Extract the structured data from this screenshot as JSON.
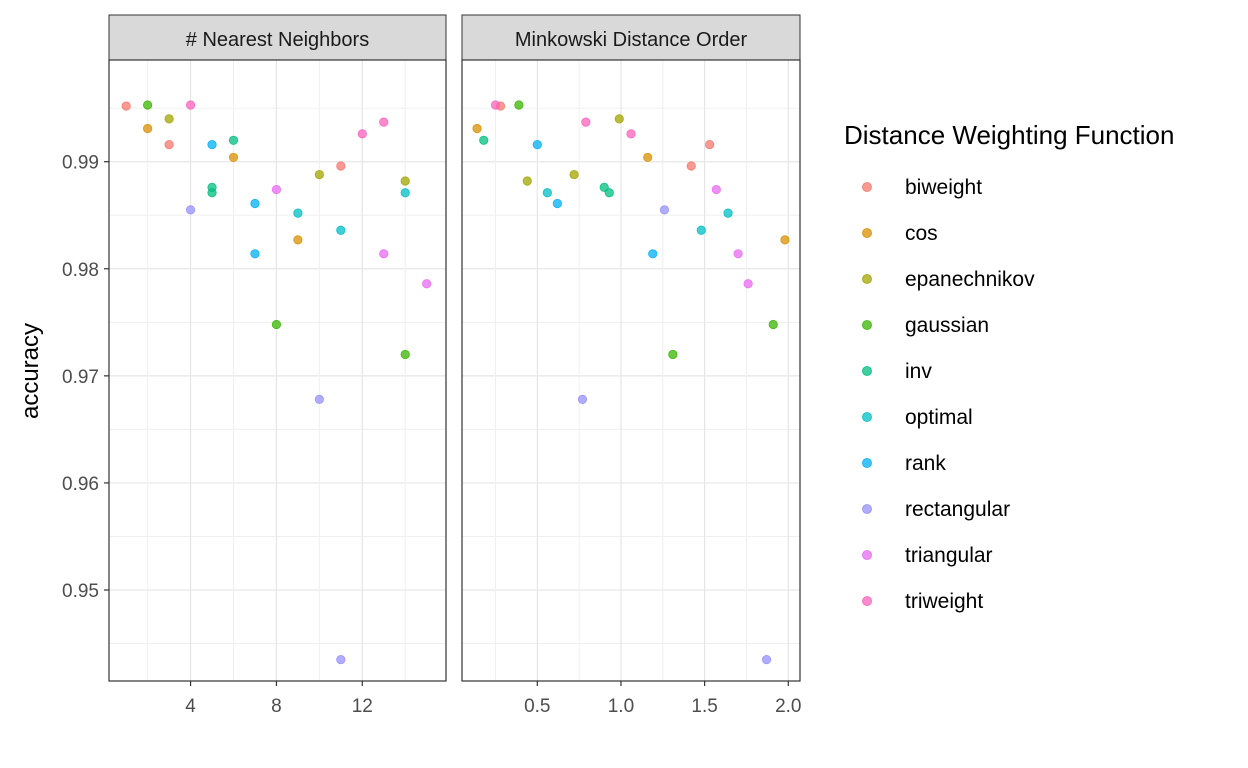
{
  "chart_data": {
    "type": "scatter",
    "ylabel": "accuracy",
    "ylim": [
      0.9415,
      0.9995
    ],
    "yticks": [
      0.95,
      0.96,
      0.97,
      0.98,
      0.99
    ],
    "ytick_labels": [
      "0.95",
      "0.96",
      "0.97",
      "0.98",
      "0.99"
    ],
    "grid": true,
    "legend_title": "Distance Weighting Function",
    "legend_position": "right",
    "series_colors": {
      "biweight": "#F8766D",
      "cos": "#D89000",
      "epanechnikov": "#A3A500",
      "gaussian": "#39B600",
      "inv": "#00BF7D",
      "optimal": "#00BFC4",
      "rank": "#00B0F6",
      "rectangular": "#9590FF",
      "triangular": "#E76BF3",
      "triweight": "#FF62BC"
    },
    "legend_items": [
      "biweight",
      "cos",
      "epanechnikov",
      "gaussian",
      "inv",
      "optimal",
      "rank",
      "rectangular",
      "triangular",
      "triweight"
    ],
    "panels": [
      {
        "title": "# Nearest Neighbors",
        "xlim": [
          0.2,
          15.9
        ],
        "xticks": [
          4,
          8,
          12
        ],
        "xtick_labels": [
          "4",
          "8",
          "12"
        ],
        "points": [
          {
            "x": 1,
            "y": 0.9952,
            "s": "biweight"
          },
          {
            "x": 3,
            "y": 0.9916,
            "s": "biweight"
          },
          {
            "x": 11,
            "y": 0.9896,
            "s": "biweight"
          },
          {
            "x": 2,
            "y": 0.9931,
            "s": "cos"
          },
          {
            "x": 6,
            "y": 0.9904,
            "s": "cos"
          },
          {
            "x": 9,
            "y": 0.9827,
            "s": "cos"
          },
          {
            "x": 3,
            "y": 0.994,
            "s": "epanechnikov"
          },
          {
            "x": 10,
            "y": 0.9888,
            "s": "epanechnikov"
          },
          {
            "x": 14,
            "y": 0.9882,
            "s": "epanechnikov"
          },
          {
            "x": 2,
            "y": 0.9953,
            "s": "gaussian"
          },
          {
            "x": 8,
            "y": 0.9748,
            "s": "gaussian"
          },
          {
            "x": 14,
            "y": 0.972,
            "s": "gaussian"
          },
          {
            "x": 5,
            "y": 0.9876,
            "s": "inv"
          },
          {
            "x": 5,
            "y": 0.9871,
            "s": "inv"
          },
          {
            "x": 6,
            "y": 0.992,
            "s": "inv"
          },
          {
            "x": 9,
            "y": 0.9852,
            "s": "optimal"
          },
          {
            "x": 11,
            "y": 0.9836,
            "s": "optimal"
          },
          {
            "x": 14,
            "y": 0.9871,
            "s": "optimal"
          },
          {
            "x": 5,
            "y": 0.9916,
            "s": "rank"
          },
          {
            "x": 7,
            "y": 0.9861,
            "s": "rank"
          },
          {
            "x": 7,
            "y": 0.9814,
            "s": "rank"
          },
          {
            "x": 4,
            "y": 0.9855,
            "s": "rectangular"
          },
          {
            "x": 10,
            "y": 0.9678,
            "s": "rectangular"
          },
          {
            "x": 11,
            "y": 0.9435,
            "s": "rectangular"
          },
          {
            "x": 8,
            "y": 0.9874,
            "s": "triangular"
          },
          {
            "x": 13,
            "y": 0.9814,
            "s": "triangular"
          },
          {
            "x": 15,
            "y": 0.9786,
            "s": "triangular"
          },
          {
            "x": 4,
            "y": 0.9953,
            "s": "triweight"
          },
          {
            "x": 12,
            "y": 0.9926,
            "s": "triweight"
          },
          {
            "x": 13,
            "y": 0.9937,
            "s": "triweight"
          }
        ]
      },
      {
        "title": "Minkowski Distance Order",
        "xlim": [
          0.05,
          2.07
        ],
        "xticks": [
          0.5,
          1.0,
          1.5,
          2.0
        ],
        "xtick_labels": [
          "0.5",
          "1.0",
          "1.5",
          "2.0"
        ],
        "points": [
          {
            "x": 0.28,
            "y": 0.9952,
            "s": "biweight"
          },
          {
            "x": 1.42,
            "y": 0.9896,
            "s": "biweight"
          },
          {
            "x": 1.53,
            "y": 0.9916,
            "s": "biweight"
          },
          {
            "x": 0.14,
            "y": 0.9931,
            "s": "cos"
          },
          {
            "x": 1.16,
            "y": 0.9904,
            "s": "cos"
          },
          {
            "x": 1.98,
            "y": 0.9827,
            "s": "cos"
          },
          {
            "x": 0.44,
            "y": 0.9882,
            "s": "epanechnikov"
          },
          {
            "x": 0.72,
            "y": 0.9888,
            "s": "epanechnikov"
          },
          {
            "x": 0.99,
            "y": 0.994,
            "s": "epanechnikov"
          },
          {
            "x": 0.39,
            "y": 0.9953,
            "s": "gaussian"
          },
          {
            "x": 1.31,
            "y": 0.972,
            "s": "gaussian"
          },
          {
            "x": 1.91,
            "y": 0.9748,
            "s": "gaussian"
          },
          {
            "x": 0.18,
            "y": 0.992,
            "s": "inv"
          },
          {
            "x": 0.9,
            "y": 0.9876,
            "s": "inv"
          },
          {
            "x": 0.93,
            "y": 0.9871,
            "s": "inv"
          },
          {
            "x": 0.56,
            "y": 0.9871,
            "s": "optimal"
          },
          {
            "x": 1.48,
            "y": 0.9836,
            "s": "optimal"
          },
          {
            "x": 1.64,
            "y": 0.9852,
            "s": "optimal"
          },
          {
            "x": 0.5,
            "y": 0.9916,
            "s": "rank"
          },
          {
            "x": 0.62,
            "y": 0.9861,
            "s": "rank"
          },
          {
            "x": 1.19,
            "y": 0.9814,
            "s": "rank"
          },
          {
            "x": 0.77,
            "y": 0.9678,
            "s": "rectangular"
          },
          {
            "x": 1.26,
            "y": 0.9855,
            "s": "rectangular"
          },
          {
            "x": 1.87,
            "y": 0.9435,
            "s": "rectangular"
          },
          {
            "x": 1.57,
            "y": 0.9874,
            "s": "triangular"
          },
          {
            "x": 1.7,
            "y": 0.9814,
            "s": "triangular"
          },
          {
            "x": 1.76,
            "y": 0.9786,
            "s": "triangular"
          },
          {
            "x": 0.25,
            "y": 0.9953,
            "s": "triweight"
          },
          {
            "x": 0.79,
            "y": 0.9937,
            "s": "triweight"
          },
          {
            "x": 1.06,
            "y": 0.9926,
            "s": "triweight"
          }
        ]
      }
    ]
  }
}
